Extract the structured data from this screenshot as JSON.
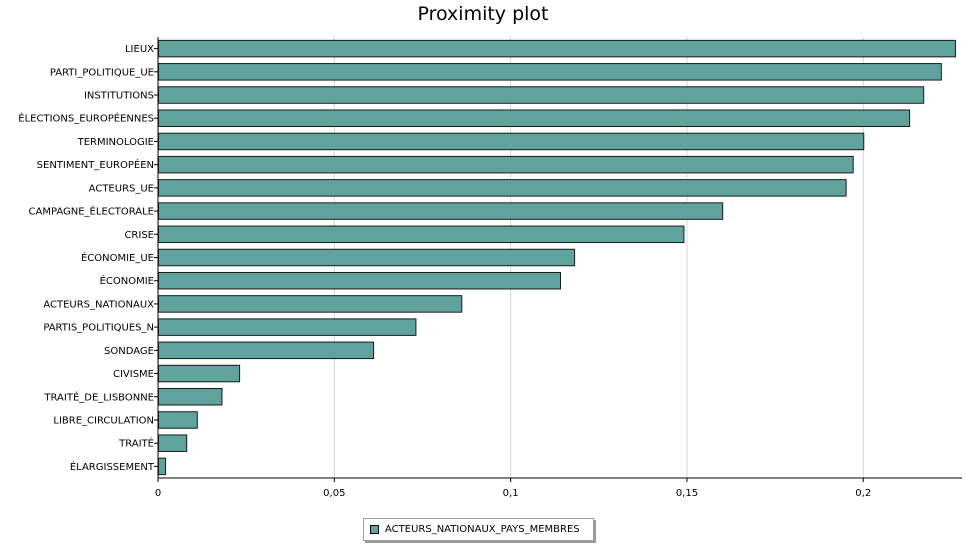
{
  "chart_data": {
    "type": "bar",
    "orientation": "horizontal",
    "title": "Proximity plot",
    "xlabel": "",
    "ylabel": "",
    "xlim": [
      0,
      0.228
    ],
    "x_ticks": [
      "0",
      "0,05",
      "0,1",
      "0,15",
      "0,2"
    ],
    "x_tick_values": [
      0,
      0.05,
      0.1,
      0.15,
      0.2
    ],
    "grid": "vertical",
    "legend_position": "bottom-center",
    "bar_color": "#5fa39c",
    "categories": [
      "LIEUX",
      "PARTI_POLITIQUE_UE",
      "INSTITUTIONS",
      "ÉLECTIONS_EUROPÉENNES",
      "TERMINOLOGIE",
      "SENTIMENT_EUROPÉEN",
      "ACTEURS_UE",
      "CAMPAGNE_ÉLECTORALE",
      "CRISE",
      "ÉCONOMIE_UE",
      "ÉCONOMIE",
      "ACTEURS_NATIONAUX",
      "PARTIS_POLITIQUES_N",
      "SONDAGE",
      "CIVISME",
      "TRAITÉ_DE_LISBONNE",
      "LIBRE_CIRCULATION",
      "TRAITÉ",
      "ÉLARGISSEMENT"
    ],
    "series": [
      {
        "name": "ACTEURS_NATIONAUX_PAYS_MEMBRES",
        "values": [
          0.226,
          0.222,
          0.217,
          0.213,
          0.2,
          0.197,
          0.195,
          0.16,
          0.149,
          0.118,
          0.114,
          0.086,
          0.073,
          0.061,
          0.023,
          0.018,
          0.011,
          0.008,
          0.002
        ]
      }
    ]
  }
}
